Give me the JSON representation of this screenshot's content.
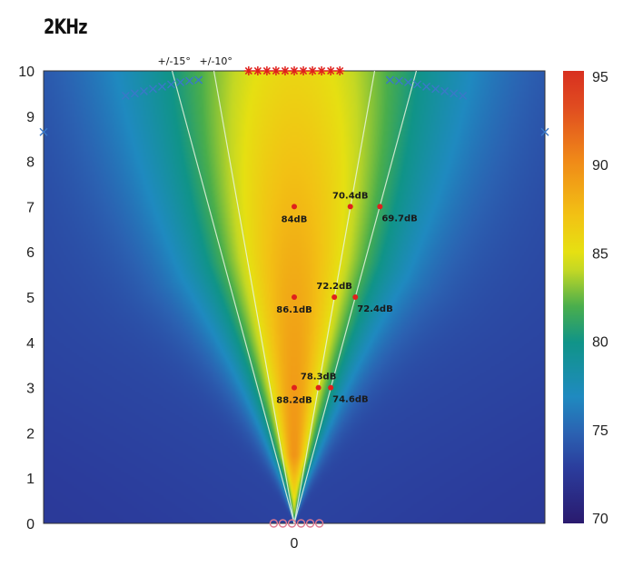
{
  "chart_data": {
    "type": "heatmap",
    "title": "2KHz",
    "xlim": [
      -5.5,
      5.5
    ],
    "ylim": [
      0,
      10
    ],
    "x_ticks": [
      0
    ],
    "x_tick_labels": [
      "0"
    ],
    "y_ticks": [
      0,
      1,
      2,
      3,
      4,
      5,
      6,
      7,
      8,
      9,
      10
    ],
    "y_tick_labels": [
      "0",
      "1",
      "2",
      "3",
      "4",
      "5",
      "6",
      "7",
      "8",
      "9",
      "10"
    ],
    "colorbar": {
      "range": [
        70,
        95
      ],
      "ticks": [
        70,
        75,
        80,
        85,
        90,
        95
      ],
      "tick_labels": [
        "70",
        "75",
        "80",
        "85",
        "90",
        "95"
      ]
    },
    "colors": {
      "70": "#2a1a6e",
      "73": "#2b3c9c",
      "75": "#2b62b2",
      "77": "#1f8ac0",
      "80": "#109488",
      "82": "#4aae4c",
      "84": "#c4d824",
      "85": "#e6e012",
      "87": "#f2c214",
      "90": "#f08a18",
      "93": "#e04c20",
      "95": "#d83020"
    },
    "angle_lines": [
      {
        "label": "+/-15°",
        "angle_deg": 15
      },
      {
        "label": "+/-10°",
        "angle_deg": 10
      }
    ],
    "measurements": [
      {
        "x": 0,
        "y": 7,
        "label": "84dB"
      },
      {
        "x": 1.23,
        "y": 7,
        "label": "70.4dB"
      },
      {
        "x": 1.88,
        "y": 7,
        "label": "69.7dB"
      },
      {
        "x": 0,
        "y": 5,
        "label": "86.1dB"
      },
      {
        "x": 0.88,
        "y": 5,
        "label": "72.2dB"
      },
      {
        "x": 1.34,
        "y": 5,
        "label": "72.4dB"
      },
      {
        "x": 0,
        "y": 3,
        "label": "88.2dB"
      },
      {
        "x": 0.53,
        "y": 3,
        "label": "78.3dB"
      },
      {
        "x": 0.8,
        "y": 3,
        "label": "74.6dB"
      }
    ],
    "marker_color": "#e0201c",
    "markers_x_blue": [
      {
        "x": -3.7,
        "y": 9.45
      },
      {
        "x": -3.5,
        "y": 9.5
      },
      {
        "x": -3.3,
        "y": 9.55
      },
      {
        "x": -3.1,
        "y": 9.6
      },
      {
        "x": -2.9,
        "y": 9.65
      },
      {
        "x": -2.7,
        "y": 9.7
      },
      {
        "x": -2.5,
        "y": 9.75
      },
      {
        "x": -2.3,
        "y": 9.78
      },
      {
        "x": -2.1,
        "y": 9.8
      },
      {
        "x": 2.1,
        "y": 9.8
      },
      {
        "x": 2.3,
        "y": 9.78
      },
      {
        "x": 2.5,
        "y": 9.75
      },
      {
        "x": 2.7,
        "y": 9.7
      },
      {
        "x": 2.9,
        "y": 9.65
      },
      {
        "x": 3.1,
        "y": 9.6
      },
      {
        "x": 3.3,
        "y": 9.55
      },
      {
        "x": 3.5,
        "y": 9.5
      },
      {
        "x": 3.7,
        "y": 9.45
      },
      {
        "x": -5.5,
        "y": 8.65
      },
      {
        "x": 5.5,
        "y": 8.65
      }
    ],
    "markers_star_red": [
      -1.0,
      -0.8,
      -0.6,
      -0.4,
      -0.2,
      0,
      0.2,
      0.4,
      0.6,
      0.8,
      1.0
    ],
    "markers_circle_pink": [
      -0.45,
      -0.25,
      -0.05,
      0.15,
      0.35,
      0.55
    ]
  }
}
